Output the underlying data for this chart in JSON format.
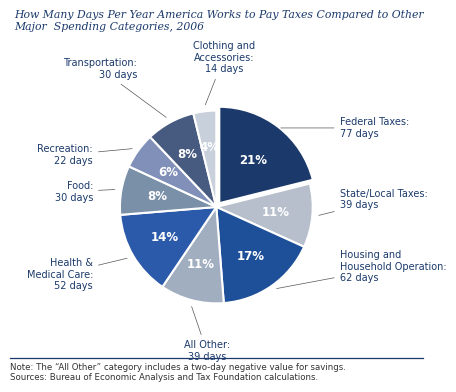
{
  "title": "How Many Days Per Year America Works to Pay Taxes Compared to Other\nMajor  Spending Categories, 2006",
  "note": "Note: The “All Other” category includes a two-day negative value for savings.\nSources: Bureau of Economic Analysis and Tax Foundation calculations.",
  "slices": [
    {
      "label": "Federal Taxes:\n77 days",
      "pct_label": "21%",
      "days": 77,
      "color": "#1b3a6b"
    },
    {
      "label": "State/Local Taxes:\n39 days",
      "pct_label": "11%",
      "days": 39,
      "color": "#b8bfcc"
    },
    {
      "label": "Housing and\nHousehold Operation:\n62 days",
      "pct_label": "17%",
      "days": 62,
      "color": "#1e4f99"
    },
    {
      "label": "All Other:\n39 days",
      "pct_label": "11%",
      "days": 39,
      "color": "#a0aec0"
    },
    {
      "label": "Health &\nMedical Care:\n52 days",
      "pct_label": "14%",
      "days": 52,
      "color": "#2b5aab"
    },
    {
      "label": "Food:\n30 days",
      "pct_label": "8%",
      "days": 30,
      "color": "#7a8fa8"
    },
    {
      "label": "Recreation:\n22 days",
      "pct_label": "6%",
      "days": 22,
      "color": "#8090b8"
    },
    {
      "label": "Transportation:\n30 days",
      "pct_label": "8%",
      "days": 30,
      "color": "#475a80"
    },
    {
      "label": "Clothing and\nAccessories:\n14 days",
      "pct_label": "4%",
      "days": 14,
      "color": "#c8d0dc"
    }
  ],
  "title_color": "#1b3a6b",
  "label_color": "#1b3a6b",
  "pct_label_color": "#ffffff",
  "note_color": "#333333",
  "background_color": "#ffffff",
  "explode_idx": 0,
  "explode_val": 0.05
}
